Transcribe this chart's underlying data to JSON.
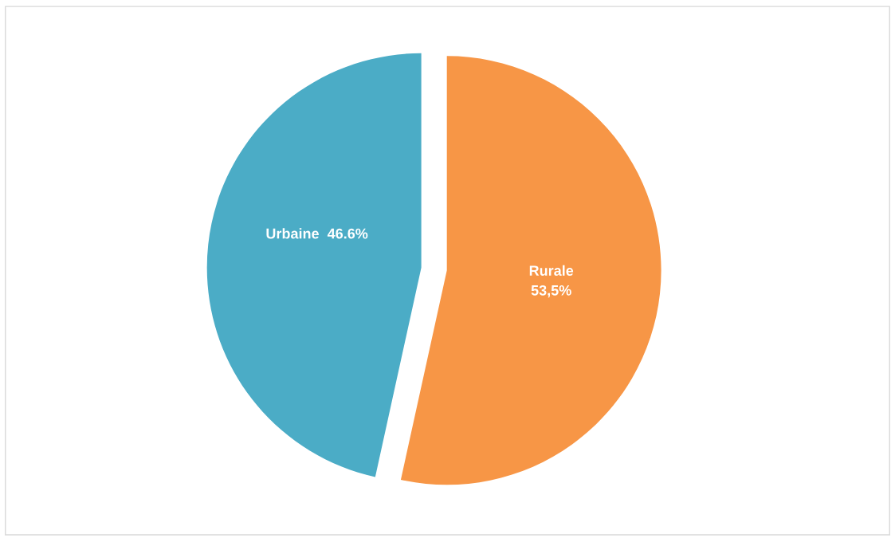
{
  "chart_data": {
    "type": "pie",
    "categories": [
      "Rurale",
      "Urbaine"
    ],
    "values": [
      53.5,
      46.6
    ],
    "colors": [
      "#f79646",
      "#4bacc6"
    ],
    "value_labels": [
      "53,5%",
      "46.6%"
    ]
  }
}
